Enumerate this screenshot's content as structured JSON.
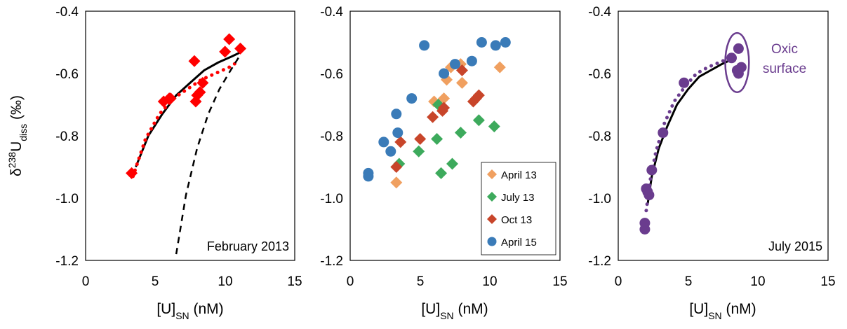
{
  "colors": {
    "feb2013": "#ff0000",
    "april13": "#f0a060",
    "july13": "#3daa5c",
    "oct13": "#c8452a",
    "april15": "#3a7bb8",
    "july2015": "#6a3c8e"
  },
  "chart_data": [
    {
      "type": "scatter",
      "panel_label": "February 2013",
      "xlabel": "[U]",
      "xlabel_sub": "SN",
      "xlabel_unit": " (nM)",
      "ylabel": "δ",
      "ylabel_sup": "238",
      "ylabel_main": "U",
      "ylabel_sub": "diss",
      "ylabel_unit": " (‰)",
      "xlim": [
        0,
        15
      ],
      "ylim": [
        -1.2,
        -0.4
      ],
      "xticks": [
        "0",
        "5",
        "10",
        "15"
      ],
      "yticks": [
        "-0.4",
        "-0.6",
        "-0.8",
        "-1.0",
        "-1.2"
      ],
      "series": [
        {
          "marker": "diamond",
          "color": "#ff0000",
          "x": [
            3.3,
            5.6,
            6.0,
            6.1,
            7.8,
            7.9,
            8.0,
            8.2,
            8.4,
            10.0,
            10.3,
            11.1
          ],
          "y": [
            -0.92,
            -0.69,
            -0.68,
            -0.68,
            -0.56,
            -0.69,
            -0.67,
            -0.66,
            -0.63,
            -0.53,
            -0.49,
            -0.52
          ]
        }
      ],
      "curves": [
        {
          "style": "solid",
          "x": [
            3.6,
            4.5,
            5.5,
            6.5,
            7.5,
            8.5,
            9.5,
            10.5,
            11.2
          ],
          "y": [
            -0.9,
            -0.8,
            -0.73,
            -0.67,
            -0.63,
            -0.59,
            -0.565,
            -0.545,
            -0.53
          ]
        },
        {
          "style": "dotted",
          "x": [
            3.4,
            4.3,
            5.3,
            6.3,
            7.3,
            8.3,
            9.3,
            10.3,
            11.0
          ],
          "y": [
            -0.93,
            -0.81,
            -0.73,
            -0.68,
            -0.65,
            -0.62,
            -0.6,
            -0.58,
            -0.56
          ]
        },
        {
          "style": "dashed",
          "x": [
            6.5,
            7.2,
            8.0,
            8.8,
            9.6,
            10.4,
            11.1
          ],
          "y": [
            -1.18,
            -0.99,
            -0.84,
            -0.73,
            -0.65,
            -0.59,
            -0.54
          ]
        }
      ]
    },
    {
      "type": "scatter",
      "xlabel": "[U]",
      "xlabel_sub": "SN",
      "xlabel_unit": " (nM)",
      "xlim": [
        0,
        15
      ],
      "ylim": [
        -1.2,
        -0.4
      ],
      "xticks": [
        "0",
        "5",
        "10",
        "15"
      ],
      "yticks": [
        "-0.4",
        "-0.6",
        "-0.8",
        "-1.0",
        "-1.2"
      ],
      "legend_position": "bottom-right",
      "series": [
        {
          "name": "April 13",
          "marker": "diamond",
          "color": "#f0a060",
          "x": [
            3.3,
            6.0,
            6.7,
            6.9,
            7.2,
            7.9,
            8.0,
            10.7
          ],
          "y": [
            -0.95,
            -0.69,
            -0.68,
            -0.62,
            -0.58,
            -0.57,
            -0.63,
            -0.58
          ]
        },
        {
          "name": "July 13",
          "marker": "diamond",
          "color": "#3daa5c",
          "x": [
            3.5,
            4.9,
            6.2,
            6.3,
            6.5,
            7.3,
            7.9,
            9.2,
            10.3
          ],
          "y": [
            -0.89,
            -0.85,
            -0.81,
            -0.7,
            -0.92,
            -0.89,
            -0.79,
            -0.75,
            -0.77
          ]
        },
        {
          "name": "Oct 13",
          "marker": "diamond",
          "color": "#c8452a",
          "x": [
            3.3,
            3.6,
            5.0,
            5.9,
            6.6,
            6.7,
            8.0,
            8.8,
            9.0,
            9.2
          ],
          "y": [
            -0.9,
            -0.82,
            -0.81,
            -0.74,
            -0.72,
            -0.71,
            -0.59,
            -0.69,
            -0.68,
            -0.67
          ]
        },
        {
          "name": "April 15",
          "marker": "circle",
          "color": "#3a7bb8",
          "x": [
            1.3,
            1.3,
            2.4,
            2.9,
            3.3,
            3.4,
            4.4,
            5.3,
            6.7,
            7.5,
            8.7,
            9.4,
            10.4,
            11.1
          ],
          "y": [
            -0.92,
            -0.93,
            -0.82,
            -0.85,
            -0.73,
            -0.79,
            -0.68,
            -0.51,
            -0.6,
            -0.57,
            -0.56,
            -0.5,
            -0.51,
            -0.5
          ]
        }
      ]
    },
    {
      "type": "scatter",
      "panel_label": "July 2015",
      "annotation_line1": "Oxic",
      "annotation_line2": "surface",
      "xlabel": "[U]",
      "xlabel_sub": "SN",
      "xlabel_unit": " (nM)",
      "xlim": [
        0,
        15
      ],
      "ylim": [
        -1.2,
        -0.4
      ],
      "xticks": [
        "0",
        "5",
        "10",
        "15"
      ],
      "yticks": [
        "-0.4",
        "-0.6",
        "-0.8",
        "-1.0",
        "-1.2"
      ],
      "series": [
        {
          "marker": "circle",
          "color": "#6a3c8e",
          "x": [
            1.9,
            1.9,
            2.0,
            2.1,
            2.2,
            2.4,
            3.2,
            4.7,
            8.1,
            8.5,
            8.6,
            8.8,
            8.6
          ],
          "y": [
            -1.1,
            -1.08,
            -0.97,
            -0.98,
            -0.99,
            -0.91,
            -0.79,
            -0.63,
            -0.55,
            -0.59,
            -0.6,
            -0.58,
            -0.52
          ]
        }
      ],
      "curves": [
        {
          "style": "solid",
          "x": [
            2.1,
            2.4,
            2.9,
            3.5,
            4.2,
            5.0,
            5.8,
            6.6,
            7.4,
            8.1
          ],
          "y": [
            -1.02,
            -0.93,
            -0.84,
            -0.77,
            -0.7,
            -0.65,
            -0.61,
            -0.59,
            -0.57,
            -0.555
          ]
        },
        {
          "style": "dotted",
          "x": [
            2.0,
            2.3,
            2.7,
            3.3,
            4.0,
            4.8,
            5.6,
            6.4,
            7.2,
            8.0
          ],
          "y": [
            -1.04,
            -0.94,
            -0.85,
            -0.76,
            -0.69,
            -0.64,
            -0.6,
            -0.58,
            -0.565,
            -0.55
          ]
        }
      ],
      "highlight": {
        "cx": 8.5,
        "cy": -0.565,
        "rx": 0.85,
        "ry": 0.095
      }
    }
  ]
}
